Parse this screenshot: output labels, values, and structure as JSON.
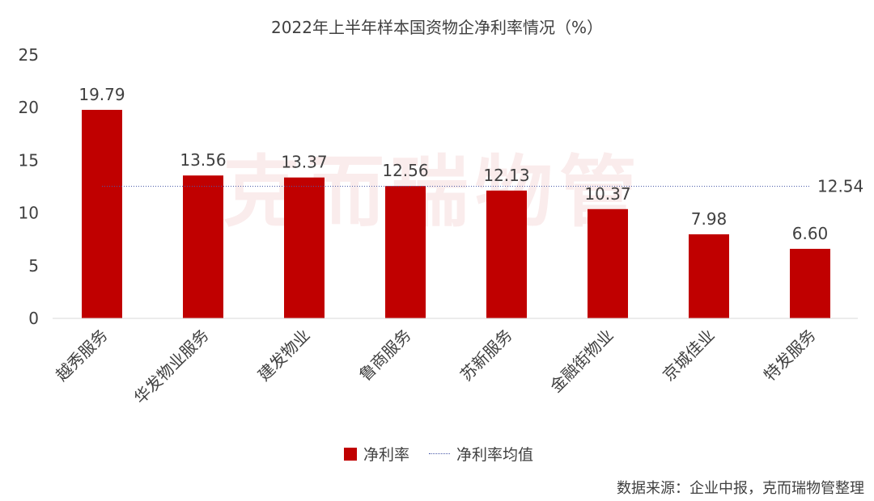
{
  "watermark": "克而瑞物管",
  "source": "数据来源：企业中报，克而瑞物管整理",
  "colors": {
    "bar": "#c00000",
    "avg_line": "#4a5aa8",
    "axis": "#d9d9d9",
    "text": "#404040"
  },
  "chart_data": {
    "type": "bar",
    "title": "2022年上半年样本国资物企净利率情况（%）",
    "categories": [
      "越秀服务",
      "华发物业服务",
      "建发物业",
      "鲁商服务",
      "苏新服务",
      "金融街物业",
      "京城佳业",
      "特发服务"
    ],
    "series": [
      {
        "name": "净利率",
        "values": [
          19.79,
          13.56,
          13.37,
          12.56,
          12.13,
          10.37,
          7.98,
          6.6
        ],
        "labels": [
          "19.79",
          "13.56",
          "13.37",
          "12.56",
          "12.13",
          "10.37",
          "7.98",
          "6.60"
        ]
      }
    ],
    "reference_line": {
      "name": "净利率均值",
      "value": 12.54,
      "label": "12.54"
    },
    "ylim": [
      0,
      25
    ],
    "yticks": [
      "0",
      "5",
      "10",
      "15",
      "20",
      "25"
    ],
    "grid": false,
    "legend_position": "bottom"
  }
}
